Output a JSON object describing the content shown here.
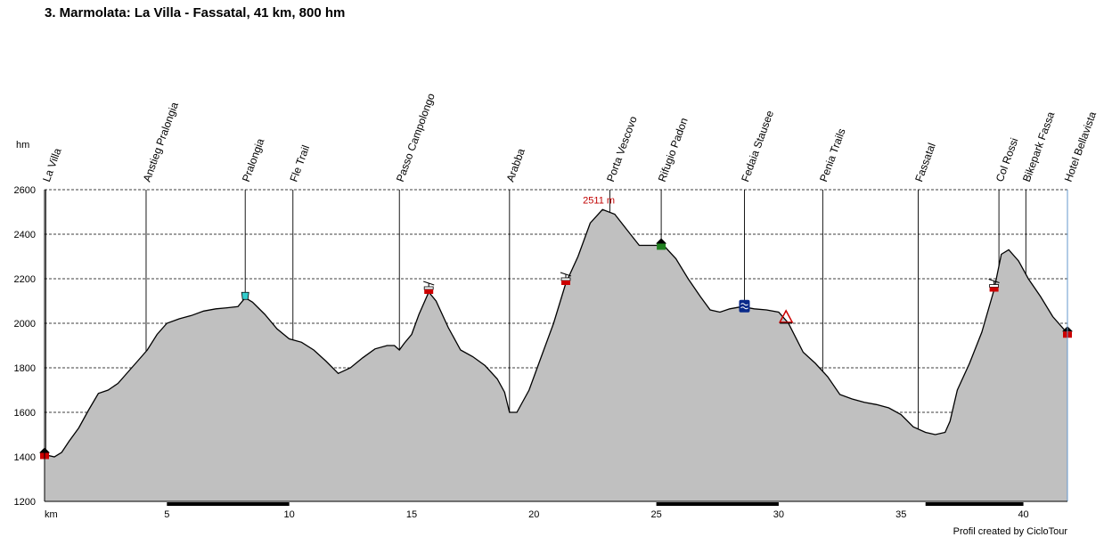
{
  "chart_data": {
    "type": "area",
    "title": "3. Marmolata: La Villa - Fassatal, 41 km, 800 hm",
    "xlabel": "km",
    "ylabel": "hm",
    "xlim": [
      0,
      41.8
    ],
    "ylim": [
      1200,
      2600
    ],
    "x_ticks": [
      5,
      10,
      15,
      20,
      25,
      30,
      35,
      40
    ],
    "y_ticks": [
      1200,
      1400,
      1600,
      1800,
      2000,
      2200,
      2400,
      2600
    ],
    "grid": "horizontal dashed",
    "fill_color": "#c0c0c0",
    "line_color": "#000000",
    "peak_annotation": {
      "text": "2511 m",
      "x": 22.8,
      "y": 2511,
      "color": "#c00000"
    },
    "credit": "Profil created by CicloTour",
    "profile": [
      [
        0,
        1410
      ],
      [
        0.4,
        1400
      ],
      [
        0.7,
        1420
      ],
      [
        1.0,
        1470
      ],
      [
        1.4,
        1530
      ],
      [
        1.8,
        1610
      ],
      [
        2.2,
        1685
      ],
      [
        2.6,
        1700
      ],
      [
        3.0,
        1730
      ],
      [
        3.4,
        1780
      ],
      [
        3.8,
        1830
      ],
      [
        4.2,
        1880
      ],
      [
        4.6,
        1950
      ],
      [
        5.0,
        2000
      ],
      [
        5.5,
        2020
      ],
      [
        6.0,
        2035
      ],
      [
        6.5,
        2055
      ],
      [
        7.0,
        2065
      ],
      [
        7.5,
        2070
      ],
      [
        7.9,
        2075
      ],
      [
        8.2,
        2115
      ],
      [
        8.5,
        2095
      ],
      [
        9.0,
        2040
      ],
      [
        9.5,
        1975
      ],
      [
        10.0,
        1930
      ],
      [
        10.5,
        1915
      ],
      [
        11.0,
        1880
      ],
      [
        11.5,
        1830
      ],
      [
        12.0,
        1775
      ],
      [
        12.5,
        1800
      ],
      [
        13.0,
        1845
      ],
      [
        13.5,
        1885
      ],
      [
        14.0,
        1900
      ],
      [
        14.3,
        1900
      ],
      [
        14.5,
        1880
      ],
      [
        14.7,
        1910
      ],
      [
        15.0,
        1950
      ],
      [
        15.3,
        2040
      ],
      [
        15.7,
        2140
      ],
      [
        16.0,
        2100
      ],
      [
        16.5,
        1980
      ],
      [
        17.0,
        1880
      ],
      [
        17.5,
        1850
      ],
      [
        18.0,
        1810
      ],
      [
        18.5,
        1750
      ],
      [
        18.8,
        1690
      ],
      [
        19.0,
        1600
      ],
      [
        19.3,
        1600
      ],
      [
        19.8,
        1700
      ],
      [
        20.3,
        1850
      ],
      [
        20.8,
        2000
      ],
      [
        21.3,
        2180
      ],
      [
        21.8,
        2300
      ],
      [
        22.3,
        2450
      ],
      [
        22.8,
        2511
      ],
      [
        23.3,
        2490
      ],
      [
        23.8,
        2420
      ],
      [
        24.3,
        2350
      ],
      [
        24.8,
        2350
      ],
      [
        25.3,
        2350
      ],
      [
        25.8,
        2290
      ],
      [
        26.3,
        2200
      ],
      [
        26.8,
        2120
      ],
      [
        27.2,
        2060
      ],
      [
        27.6,
        2050
      ],
      [
        28.0,
        2065
      ],
      [
        28.5,
        2075
      ],
      [
        29.0,
        2065
      ],
      [
        29.5,
        2060
      ],
      [
        30.0,
        2050
      ],
      [
        30.4,
        2000
      ],
      [
        31.0,
        1870
      ],
      [
        31.5,
        1820
      ],
      [
        32.0,
        1760
      ],
      [
        32.5,
        1680
      ],
      [
        33.0,
        1660
      ],
      [
        33.5,
        1645
      ],
      [
        34.0,
        1635
      ],
      [
        34.5,
        1620
      ],
      [
        35.0,
        1590
      ],
      [
        35.5,
        1535
      ],
      [
        36.0,
        1510
      ],
      [
        36.4,
        1500
      ],
      [
        36.8,
        1510
      ],
      [
        37.0,
        1560
      ],
      [
        37.3,
        1700
      ],
      [
        37.8,
        1820
      ],
      [
        38.3,
        1960
      ],
      [
        38.8,
        2150
      ],
      [
        39.1,
        2310
      ],
      [
        39.4,
        2330
      ],
      [
        39.8,
        2280
      ],
      [
        40.2,
        2200
      ],
      [
        40.7,
        2120
      ],
      [
        41.2,
        2030
      ],
      [
        41.8,
        1955
      ]
    ],
    "waypoints": [
      {
        "name": "La Villa",
        "km": 0.05
      },
      {
        "name": "Anstieg Pralongia",
        "km": 4.15
      },
      {
        "name": "Pralongia",
        "km": 8.2
      },
      {
        "name": "Fle Trail",
        "km": 10.15
      },
      {
        "name": "Passo Campolongo",
        "km": 14.5
      },
      {
        "name": "Arabba",
        "km": 19.0
      },
      {
        "name": "Porta Vescovo",
        "km": 23.1
      },
      {
        "name": "Rifugio Padon",
        "km": 25.2
      },
      {
        "name": "Fedaia Stausee",
        "km": 28.6
      },
      {
        "name": "Penia Trails",
        "km": 31.8
      },
      {
        "name": "Fassatal",
        "km": 35.7
      },
      {
        "name": "Col Rossi",
        "km": 39.0
      },
      {
        "name": "Bikepark Fassa",
        "km": 40.1
      },
      {
        "name": "Hotel Bellavista",
        "km": 41.8
      }
    ],
    "markers": [
      {
        "type": "house-icon",
        "km": 0.0,
        "color": "#cc0000"
      },
      {
        "type": "cup-icon",
        "km": 8.2,
        "color": "#33cccc"
      },
      {
        "type": "cable-car-icon",
        "km": 15.7,
        "color": "#cc0000"
      },
      {
        "type": "cable-car-icon",
        "km": 21.3,
        "color": "#cc0000"
      },
      {
        "type": "hut-icon",
        "km": 25.2,
        "color": "#208020"
      },
      {
        "type": "lake-icon",
        "km": 28.6,
        "color": "#0a2a8a"
      },
      {
        "type": "warning-icon",
        "km": 30.3,
        "color": "#cc0000"
      },
      {
        "type": "cable-car-icon",
        "km": 38.8,
        "color": "#cc0000"
      },
      {
        "type": "house-icon",
        "km": 41.8,
        "color": "#cc0000"
      }
    ],
    "road_segments": [
      [
        5,
        10
      ],
      [
        25,
        30
      ],
      [
        36,
        40
      ]
    ]
  }
}
